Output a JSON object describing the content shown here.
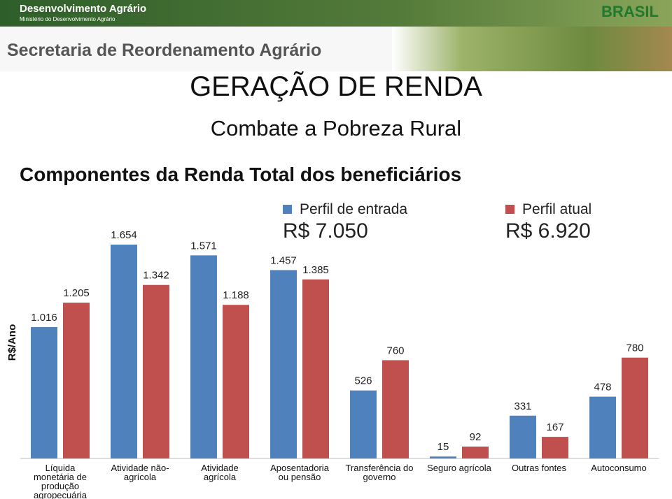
{
  "header": {
    "brand": "Desenvolvimento Agrário",
    "ministry": "Ministério do Desenvolvimento Agrário",
    "country": "BRASIL",
    "secretariat": "Secretaria de Reordenamento Agrário"
  },
  "chart_data": {
    "type": "bar",
    "title": "GERAÇÃO DE RENDA",
    "subtitle": "Combate a Pobreza Rural",
    "heading": "Componentes da Renda Total dos beneficiários",
    "y_label": "R$/Ano",
    "categories": [
      "Líquida\nmonetária de\nprodução\nagropecuária",
      "Atividade não-\nagrícola",
      "Atividade\nagrícola",
      "Aposentadoria\nou pensão",
      "Transferência do\ngoverno",
      "Seguro agrícola",
      "Outras fontes",
      "Autoconsumo"
    ],
    "series": [
      {
        "name": "Perfil de entrada",
        "total": "R$ 7.050",
        "color": "#4f81bd",
        "values": [
          1016,
          1654,
          1571,
          1457,
          526,
          15,
          331,
          478
        ],
        "value_labels": [
          "1.016",
          "1.654",
          "1.571",
          "1.457",
          "526",
          "15",
          "331",
          "478"
        ]
      },
      {
        "name": "Perfil atual",
        "total": "R$ 6.920",
        "color": "#c0504d",
        "values": [
          1205,
          1342,
          1188,
          1385,
          760,
          92,
          167,
          780
        ],
        "value_labels": [
          "1.205",
          "1.342",
          "1.188",
          "1.385",
          "760",
          "92",
          "167",
          "780"
        ]
      }
    ],
    "ylim": [
      0,
      1800
    ]
  }
}
